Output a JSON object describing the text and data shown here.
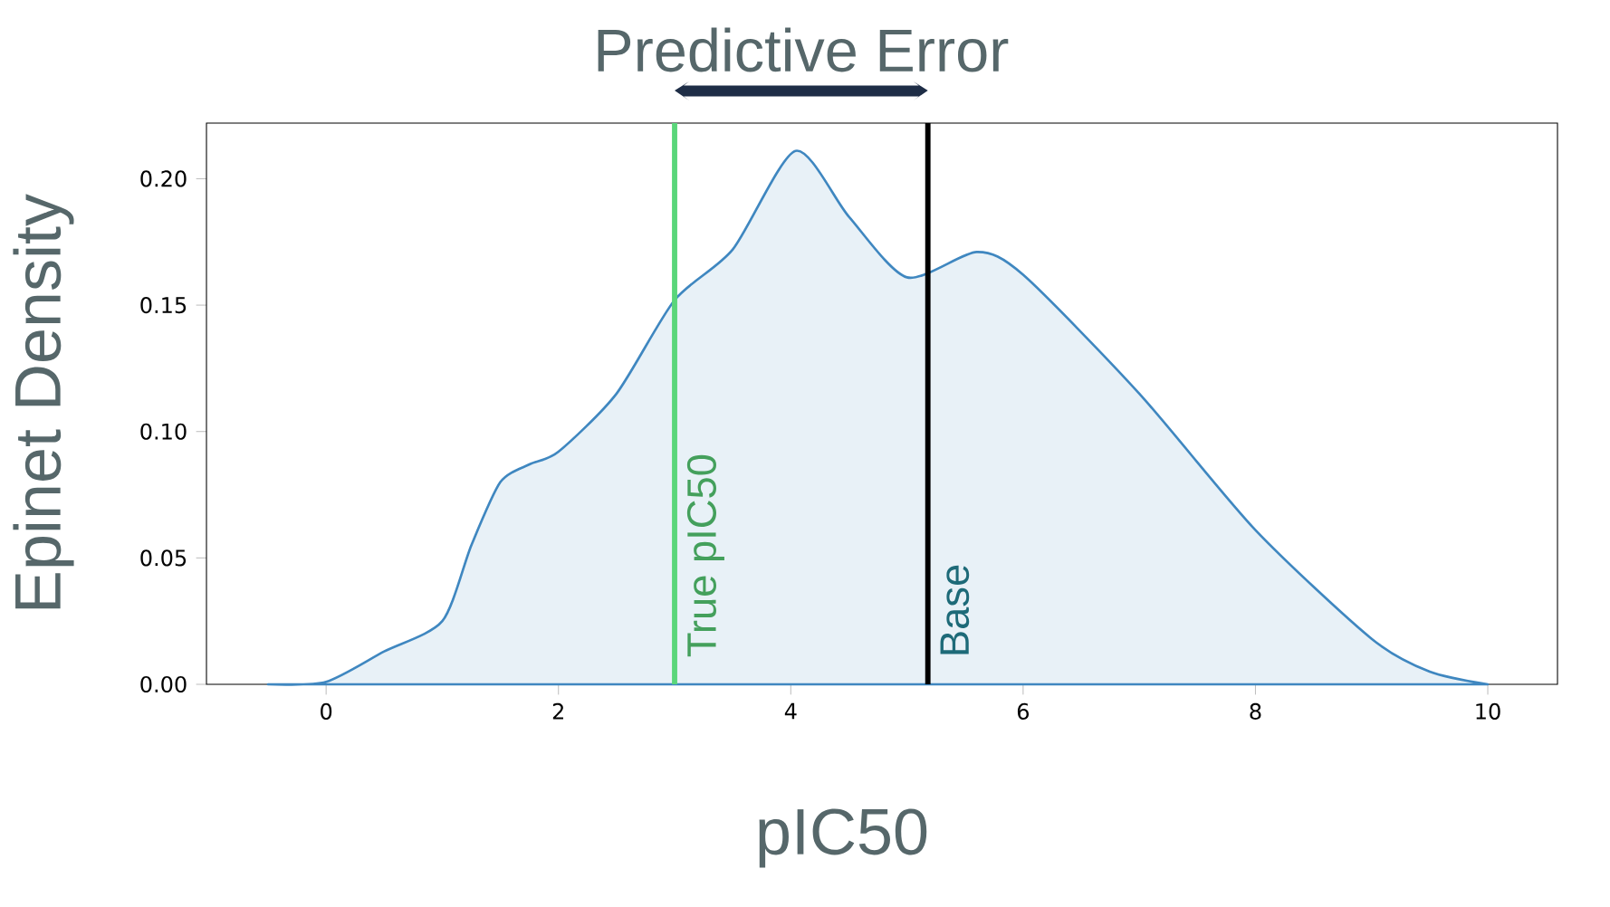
{
  "chart_data": {
    "type": "area",
    "xlabel": "pIC50",
    "ylabel": "Epinet Density",
    "x": [
      -0.5,
      0,
      0.5,
      1,
      1.25,
      1.5,
      1.75,
      2,
      2.5,
      3,
      3.5,
      4.04,
      4.5,
      5,
      5.6,
      6,
      7,
      8,
      9,
      9.5,
      10
    ],
    "series": [
      {
        "color": "#3f87c0",
        "values": [
          0,
          0.001,
          0.013,
          0.025,
          0.055,
          0.08,
          0.087,
          0.092,
          0.115,
          0.152,
          0.172,
          0.211,
          0.185,
          0.161,
          0.171,
          0.162,
          0.115,
          0.061,
          0.018,
          0.005,
          0
        ]
      }
    ],
    "xlim": [
      -1.03,
      10.6
    ],
    "ylim": [
      0,
      0.222
    ],
    "xticks": [
      0,
      2,
      4,
      6,
      8,
      10
    ],
    "yticks": [
      {
        "value": 0,
        "label": "0.00"
      },
      {
        "value": 0.05,
        "label": "0.05"
      },
      {
        "value": 0.1,
        "label": "0.10"
      },
      {
        "value": 0.15,
        "label": "0.15"
      },
      {
        "value": 0.2,
        "label": "0.20"
      }
    ],
    "ref_lines": [
      {
        "axis": "x",
        "value": 3,
        "label": "True pIC50",
        "color": "#5ad67a"
      },
      {
        "axis": "x",
        "value": 5.18,
        "label": "Base",
        "color": "#000000"
      }
    ],
    "annotations": [
      "Predictive Error"
    ],
    "grid": false
  }
}
